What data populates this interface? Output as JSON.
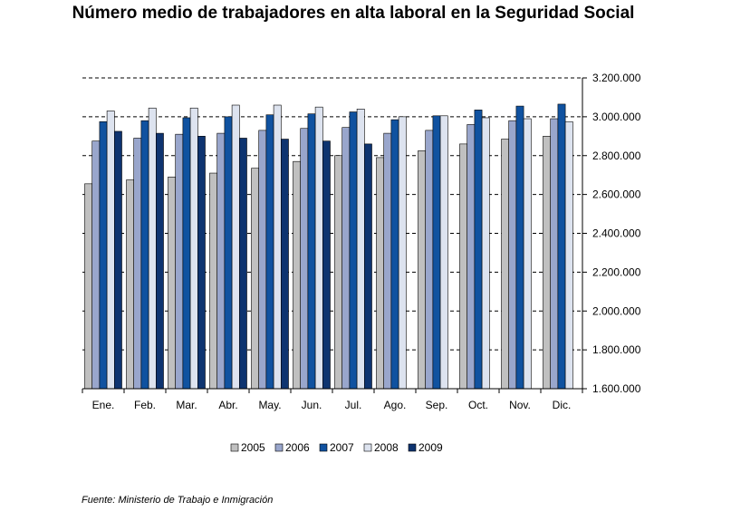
{
  "chart_data": {
    "type": "bar",
    "title": "Número medio de trabajadores en alta laboral en la Seguridad Social",
    "categories": [
      "Ene.",
      "Feb.",
      "Mar.",
      "Abr.",
      "May.",
      "Jun.",
      "Jul.",
      "Ago.",
      "Sep.",
      "Oct.",
      "Nov.",
      "Dic."
    ],
    "series": [
      {
        "name": "2005",
        "color": "#c0c0c0",
        "values": [
          2655000,
          2675000,
          2690000,
          2710000,
          2735000,
          2770000,
          2800000,
          2790000,
          2825000,
          2860000,
          2885000,
          2900000
        ]
      },
      {
        "name": "2006",
        "color": "#99a6cc",
        "values": [
          2875000,
          2890000,
          2910000,
          2915000,
          2930000,
          2940000,
          2945000,
          2915000,
          2930000,
          2960000,
          2980000,
          2990000
        ]
      },
      {
        "name": "2007",
        "color": "#1052a0",
        "values": [
          2975000,
          2980000,
          2995000,
          3000000,
          3010000,
          3015000,
          3025000,
          2985000,
          3005000,
          3035000,
          3055000,
          3065000
        ]
      },
      {
        "name": "2008",
        "color": "#dde3ef",
        "values": [
          3030000,
          3045000,
          3045000,
          3060000,
          3060000,
          3050000,
          3040000,
          3000000,
          3005000,
          2995000,
          2990000,
          2975000
        ]
      },
      {
        "name": "2009",
        "color": "#0e3470",
        "values": [
          2925000,
          2915000,
          2900000,
          2890000,
          2885000,
          2875000,
          2860000,
          null,
          null,
          null,
          null,
          null
        ]
      }
    ],
    "y_ticks": [
      "1.600.000",
      "1.800.000",
      "2.000.000",
      "2.200.000",
      "2.400.000",
      "2.600.000",
      "2.800.000",
      "3.000.000",
      "3.200.000"
    ],
    "ylim": [
      1600000,
      3200000
    ],
    "grid": "horizontal dashed",
    "legend_position": "bottom"
  },
  "source_note": "Fuente: Ministerio de Trabajo e Inmigración"
}
